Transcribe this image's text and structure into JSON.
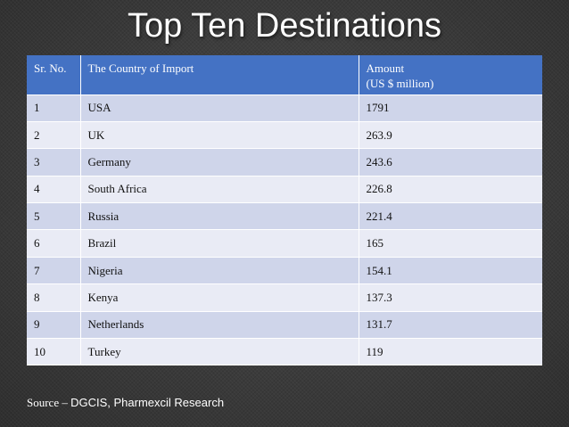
{
  "title": "Top Ten Destinations",
  "table": {
    "headers": {
      "sr_no": "Sr. No.",
      "country": "The Country of Import",
      "amount_line1": "Amount",
      "amount_line2": "(US $ million)"
    },
    "rows": [
      {
        "sr": "1",
        "country": "USA",
        "amount": "1791"
      },
      {
        "sr": "2",
        "country": "UK",
        "amount": "263.9"
      },
      {
        "sr": "3",
        "country": "Germany",
        "amount": "243.6"
      },
      {
        "sr": "4",
        "country": "South Africa",
        "amount": "226.8"
      },
      {
        "sr": "5",
        "country": "Russia",
        "amount": "221.4"
      },
      {
        "sr": "6",
        "country": "Brazil",
        "amount": "165"
      },
      {
        "sr": "7",
        "country": "Nigeria",
        "amount": "154.1"
      },
      {
        "sr": "8",
        "country": "Kenya",
        "amount": "137.3"
      },
      {
        "sr": "9",
        "country": "Netherlands",
        "amount": "131.7"
      },
      {
        "sr": "10",
        "country": "Turkey",
        "amount": "119"
      }
    ]
  },
  "source": {
    "label": "Source – ",
    "value": "DGCIS, Pharmexcil Research"
  },
  "colors": {
    "header_bg": "#4472c4",
    "row_odd_bg": "#cfd5ea",
    "row_even_bg": "#e9ebf5"
  }
}
